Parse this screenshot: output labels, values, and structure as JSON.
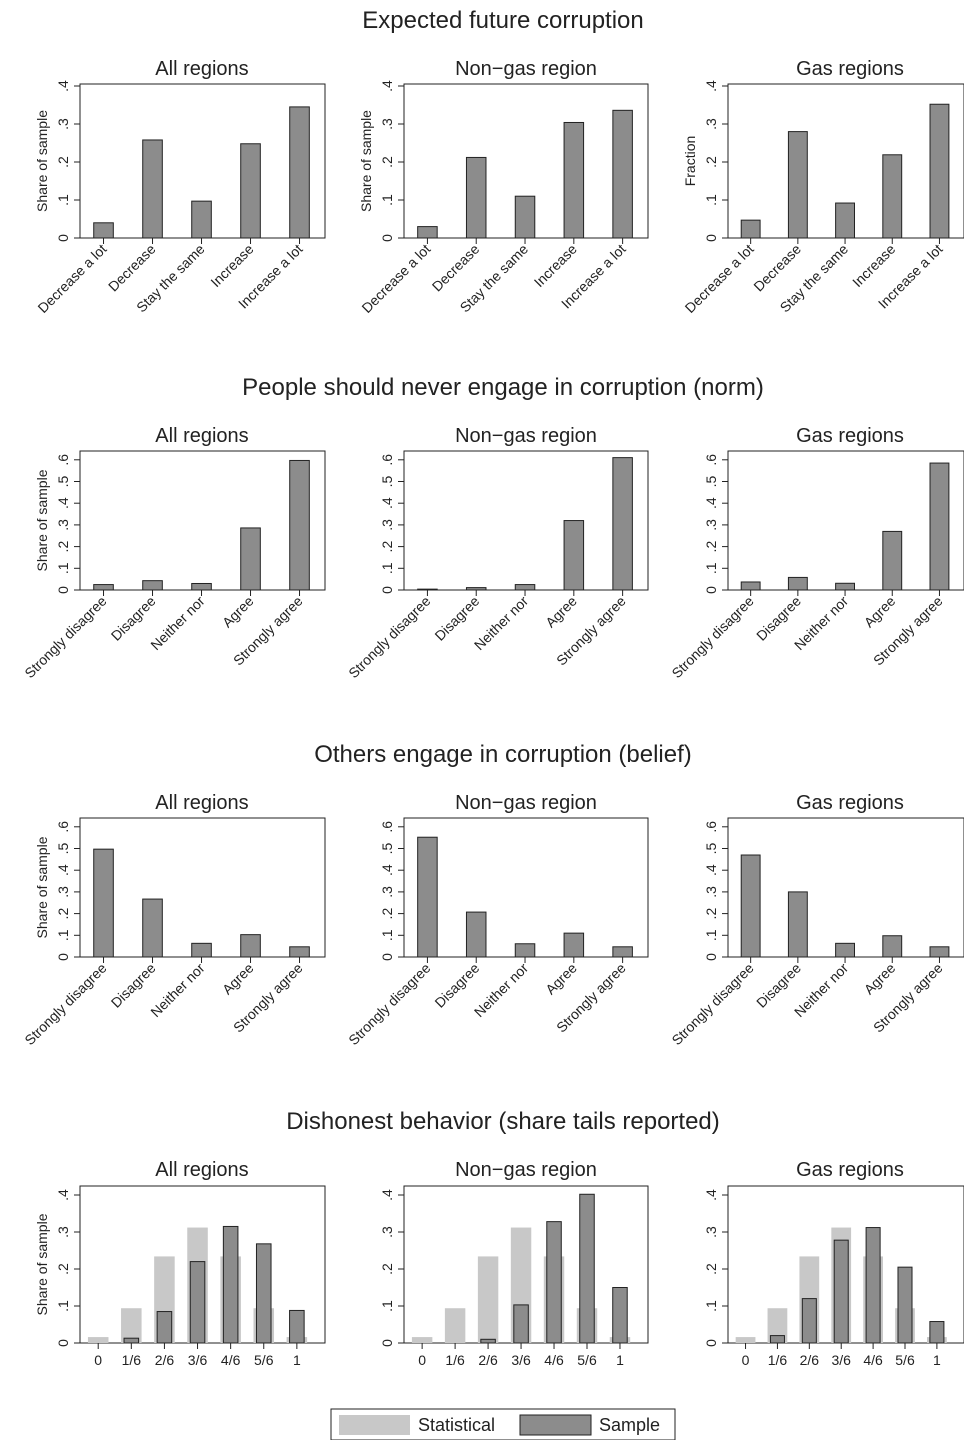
{
  "colors": {
    "sample": "#8c8c8c",
    "statistical": "#c8c8c8",
    "stroke": "#222222",
    "text": "#222222"
  },
  "legend": {
    "statistical": "Statistical",
    "sample": "Sample",
    "placement": "bottom-center"
  },
  "chart_data": [
    {
      "title": "Expected future corruption",
      "panels": [
        {
          "subtitle": "All regions",
          "type": "bar",
          "ylabel": "Share of sample",
          "ylim": [
            0,
            0.4
          ],
          "yticks": [
            0,
            0.1,
            0.2,
            0.3,
            0.4
          ],
          "yticklabels": [
            "0",
            ".1",
            ".2",
            ".3",
            ".4"
          ],
          "categories": [
            "Decrease a lot",
            "Decrease",
            "Stay the same",
            "Increase",
            "Increase a lot"
          ],
          "values": [
            0.04,
            0.258,
            0.097,
            0.248,
            0.345
          ]
        },
        {
          "subtitle": "Non−gas region",
          "type": "bar",
          "ylabel": "Share of sample",
          "ylim": [
            0,
            0.4
          ],
          "yticks": [
            0,
            0.1,
            0.2,
            0.3,
            0.4
          ],
          "yticklabels": [
            "0",
            ".1",
            ".2",
            ".3",
            ".4"
          ],
          "categories": [
            "Decrease a lot",
            "Decrease",
            "Stay the same",
            "Increase",
            "Increase a lot"
          ],
          "values": [
            0.03,
            0.212,
            0.11,
            0.304,
            0.336
          ]
        },
        {
          "subtitle": "Gas regions",
          "type": "bar",
          "ylabel": "Fraction",
          "ylim": [
            0,
            0.4
          ],
          "yticks": [
            0,
            0.1,
            0.2,
            0.3,
            0.4
          ],
          "yticklabels": [
            "0",
            ".1",
            ".2",
            ".3",
            ".4"
          ],
          "categories": [
            "Decrease a lot",
            "Decrease",
            "Stay the same",
            "Increase",
            "Increase a lot"
          ],
          "values": [
            0.047,
            0.28,
            0.092,
            0.219,
            0.352
          ]
        }
      ]
    },
    {
      "title": "People should never engage in corruption (norm)",
      "panels": [
        {
          "subtitle": "All regions",
          "type": "bar",
          "ylabel": "Share of sample",
          "ylim": [
            0,
            0.6
          ],
          "yticks": [
            0,
            0.1,
            0.2,
            0.3,
            0.4,
            0.5,
            0.6
          ],
          "yticklabels": [
            "0",
            ".1",
            ".2",
            ".3",
            ".4",
            ".5",
            ".6"
          ],
          "categories": [
            "Strongly disagree",
            "Disagree",
            "Neither nor",
            "Agree",
            "Strongly agree"
          ],
          "values": [
            0.025,
            0.043,
            0.03,
            0.286,
            0.597
          ]
        },
        {
          "subtitle": "Non−gas region",
          "type": "bar",
          "ylabel": "",
          "ylim": [
            0,
            0.6
          ],
          "yticks": [
            0,
            0.1,
            0.2,
            0.3,
            0.4,
            0.5,
            0.6
          ],
          "yticklabels": [
            "0",
            ".1",
            ".2",
            ".3",
            ".4",
            ".5",
            ".6"
          ],
          "categories": [
            "Strongly disagree",
            "Disagree",
            "Neither nor",
            "Agree",
            "Strongly agree"
          ],
          "values": [
            0.004,
            0.011,
            0.025,
            0.32,
            0.61
          ]
        },
        {
          "subtitle": "Gas regions",
          "type": "bar",
          "ylabel": "",
          "ylim": [
            0,
            0.6
          ],
          "yticks": [
            0,
            0.1,
            0.2,
            0.3,
            0.4,
            0.5,
            0.6
          ],
          "yticklabels": [
            "0",
            ".1",
            ".2",
            ".3",
            ".4",
            ".5",
            ".6"
          ],
          "categories": [
            "Strongly disagree",
            "Disagree",
            "Neither nor",
            "Agree",
            "Strongly agree"
          ],
          "values": [
            0.037,
            0.058,
            0.031,
            0.27,
            0.585
          ]
        }
      ]
    },
    {
      "title": "Others engage in corruption (belief)",
      "panels": [
        {
          "subtitle": "All regions",
          "type": "bar",
          "ylabel": "Share of sample",
          "ylim": [
            0,
            0.6
          ],
          "yticks": [
            0,
            0.1,
            0.2,
            0.3,
            0.4,
            0.5,
            0.6
          ],
          "yticklabels": [
            "0",
            ".1",
            ".2",
            ".3",
            ".4",
            ".5",
            ".6"
          ],
          "categories": [
            "Strongly disagree",
            "Disagree",
            "Neither nor",
            "Agree",
            "Strongly agree"
          ],
          "values": [
            0.497,
            0.267,
            0.063,
            0.103,
            0.047
          ]
        },
        {
          "subtitle": "Non−gas region",
          "type": "bar",
          "ylabel": "",
          "ylim": [
            0,
            0.6
          ],
          "yticks": [
            0,
            0.1,
            0.2,
            0.3,
            0.4,
            0.5,
            0.6
          ],
          "yticklabels": [
            "0",
            ".1",
            ".2",
            ".3",
            ".4",
            ".5",
            ".6"
          ],
          "categories": [
            "Strongly disagree",
            "Disagree",
            "Neither nor",
            "Agree",
            "Strongly agree"
          ],
          "values": [
            0.552,
            0.207,
            0.061,
            0.11,
            0.047
          ]
        },
        {
          "subtitle": "Gas regions",
          "type": "bar",
          "ylabel": "",
          "ylim": [
            0,
            0.6
          ],
          "yticks": [
            0,
            0.1,
            0.2,
            0.3,
            0.4,
            0.5,
            0.6
          ],
          "yticklabels": [
            "0",
            ".1",
            ".2",
            ".3",
            ".4",
            ".5",
            ".6"
          ],
          "categories": [
            "Strongly disagree",
            "Disagree",
            "Neither nor",
            "Agree",
            "Strongly agree"
          ],
          "values": [
            0.47,
            0.3,
            0.063,
            0.098,
            0.047
          ]
        }
      ]
    },
    {
      "title": "Dishonest behavior (share tails reported)",
      "panels": [
        {
          "subtitle": "All regions",
          "type": "bar",
          "ylabel": "Share of sample",
          "ylim": [
            0,
            0.4
          ],
          "yticks": [
            0,
            0.1,
            0.2,
            0.3,
            0.4
          ],
          "yticklabels": [
            "0",
            ".1",
            ".2",
            ".3",
            ".4"
          ],
          "categories": [
            "0",
            "1/6",
            "2/6",
            "3/6",
            "4/6",
            "5/6",
            "1"
          ],
          "series": [
            {
              "name": "Statistical",
              "values": [
                0.016,
                0.094,
                0.234,
                0.312,
                0.234,
                0.094,
                0.016
              ]
            },
            {
              "name": "Sample",
              "values": [
                0.0,
                0.013,
                0.085,
                0.22,
                0.315,
                0.268,
                0.088
              ]
            }
          ]
        },
        {
          "subtitle": "Non−gas region",
          "type": "bar",
          "ylabel": "",
          "ylim": [
            0,
            0.4
          ],
          "yticks": [
            0,
            0.1,
            0.2,
            0.3,
            0.4
          ],
          "yticklabels": [
            "0",
            ".1",
            ".2",
            ".3",
            ".4"
          ],
          "categories": [
            "0",
            "1/6",
            "2/6",
            "3/6",
            "4/6",
            "5/6",
            "1"
          ],
          "series": [
            {
              "name": "Statistical",
              "values": [
                0.016,
                0.094,
                0.234,
                0.312,
                0.234,
                0.094,
                0.016
              ]
            },
            {
              "name": "Sample",
              "values": [
                0.0,
                0.0,
                0.01,
                0.103,
                0.328,
                0.402,
                0.15
              ]
            }
          ]
        },
        {
          "subtitle": "Gas regions",
          "type": "bar",
          "ylabel": "",
          "ylim": [
            0,
            0.4
          ],
          "yticks": [
            0,
            0.1,
            0.2,
            0.3,
            0.4
          ],
          "yticklabels": [
            "0",
            ".1",
            ".2",
            ".3",
            ".4"
          ],
          "categories": [
            "0",
            "1/6",
            "2/6",
            "3/6",
            "4/6",
            "5/6",
            "1"
          ],
          "series": [
            {
              "name": "Statistical",
              "values": [
                0.016,
                0.094,
                0.234,
                0.312,
                0.234,
                0.094,
                0.016
              ]
            },
            {
              "name": "Sample",
              "values": [
                0.0,
                0.02,
                0.12,
                0.278,
                0.312,
                0.205,
                0.058
              ]
            }
          ]
        }
      ]
    }
  ]
}
